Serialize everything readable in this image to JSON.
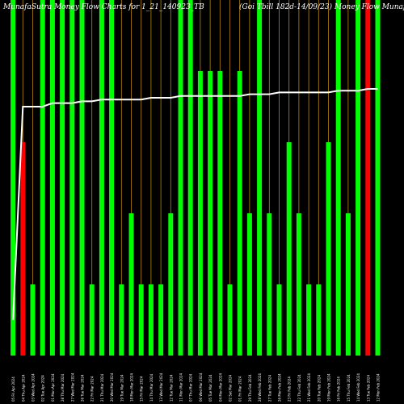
{
  "title_left": "MunafaSutra Money Flow Charts for 1_21_140923_TB",
  "title_right": "(Goi Tbill 182d-14/09/23) Money Flow Munafa",
  "colors": {
    "background": "#000000",
    "up": "#00ff00",
    "down": "#ff0000",
    "grid": "#b8860b",
    "line": "#ffffff",
    "label": "#ffffff"
  },
  "chart_data": {
    "type": "bar",
    "ylim": [
      0,
      100
    ],
    "grid": "vertical",
    "categories": [
      "05 Fri Apr 2024",
      "04 Thu Apr 2024",
      "03 Wed Apr 2024",
      "02 Tue Apr 2024",
      "01 Mon Apr 2024",
      "28 Thu Mar 2024",
      "27 Wed Mar 2024",
      "26 Tue Mar 2024",
      "22 Fri Mar 2024",
      "21 Thu Mar 2024",
      "20 Wed Mar 2024",
      "19 Tue Mar 2024",
      "18 Mon Mar 2024",
      "15 Fri Mar 2024",
      "14 Thu Mar 2024",
      "13 Wed Mar 2024",
      "12 Tue Mar 2024",
      "11 Mon Mar 2024",
      "07 Thu Mar 2024",
      "06 Wed Mar 2024",
      "05 Tue Mar 2024",
      "04 Mon Mar 2024",
      "02 Sat Mar 2024",
      "01 Fri Mar 2024",
      "29 Thu Feb 2024",
      "28 Wed Feb 2024",
      "27 Tue Feb 2024",
      "26 Mon Feb 2024",
      "23 Fri Feb 2024",
      "22 Thu Feb 2024",
      "21 Wed Feb 2024",
      "20 Tue Feb 2024",
      "19 Mon Feb 2024",
      "16 Fri Feb 2024",
      "15 Thu Feb 2024",
      "14 Wed Feb 2024",
      "13 Tue Feb 2024",
      "12 Mon Feb 2024"
    ],
    "values": [
      100,
      60,
      20,
      100,
      100,
      100,
      100,
      100,
      20,
      100,
      100,
      20,
      40,
      20,
      20,
      20,
      40,
      100,
      100,
      80,
      80,
      80,
      20,
      80,
      40,
      100,
      40,
      20,
      60,
      40,
      20,
      20,
      60,
      100,
      40,
      100,
      100,
      100
    ],
    "directions": [
      "up",
      "down",
      "up",
      "up",
      "up",
      "up",
      "up",
      "up",
      "up",
      "up",
      "up",
      "up",
      "up",
      "up",
      "up",
      "up",
      "up",
      "up",
      "up",
      "up",
      "up",
      "up",
      "up",
      "up",
      "up",
      "up",
      "up",
      "up",
      "up",
      "up",
      "up",
      "up",
      "up",
      "up",
      "up",
      "up",
      "down",
      "up"
    ],
    "series": [
      {
        "type": "line",
        "values": [
          10,
          70,
          70,
          70,
          71,
          71,
          71,
          71.5,
          71.5,
          72,
          72,
          72,
          72,
          72,
          72.5,
          72.5,
          72.5,
          73,
          73,
          73,
          73,
          73,
          73,
          73,
          73.5,
          73.5,
          73.5,
          74,
          74,
          74,
          74,
          74,
          74,
          74.5,
          74.5,
          74.5,
          75,
          75
        ]
      }
    ]
  }
}
